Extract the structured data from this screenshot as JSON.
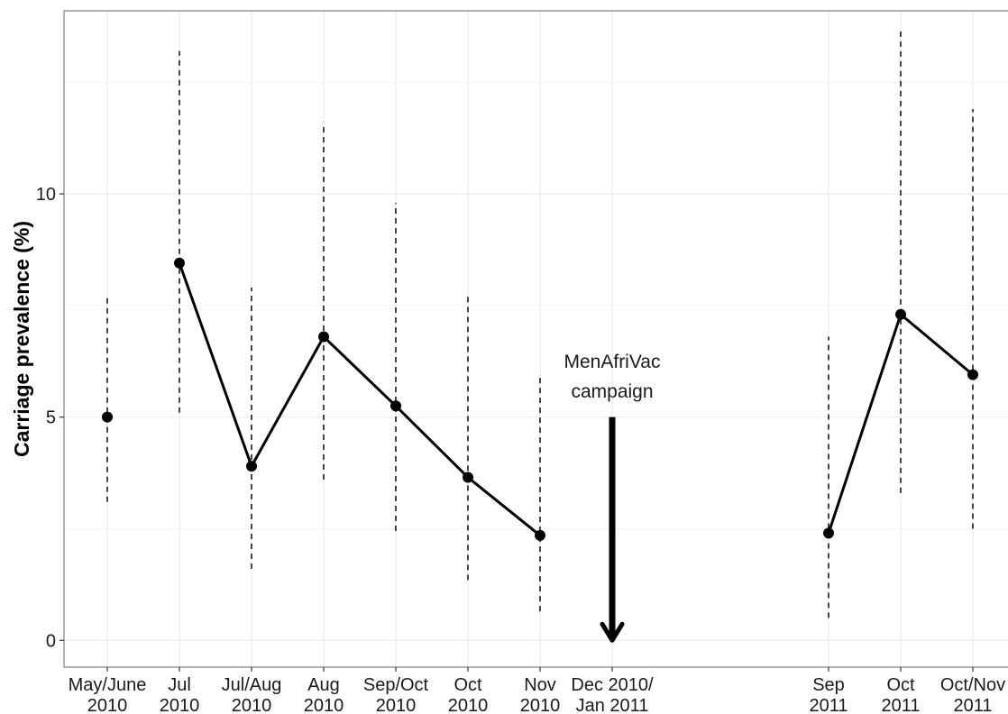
{
  "chart_data": {
    "type": "line",
    "ylabel": "Carriage prevalence (%)",
    "ylim": [
      -0.6,
      14.1
    ],
    "yticks": [
      0,
      5,
      10
    ],
    "grid": true,
    "x_tick_labels": [
      [
        "May/June",
        "2010"
      ],
      [
        "Jul",
        "2010"
      ],
      [
        "Jul/Aug",
        "2010"
      ],
      [
        "Aug",
        "2010"
      ],
      [
        "Sep/Oct",
        "2010"
      ],
      [
        "Oct",
        "2010"
      ],
      [
        "Nov",
        "2010"
      ],
      [
        "Dec 2010/",
        "Jan 2011"
      ],
      [
        "Sep",
        "2011"
      ],
      [
        "Oct",
        "2011"
      ],
      [
        "Oct/Nov",
        "2011"
      ]
    ],
    "points": [
      {
        "period": "May/June 2010",
        "y": 5.0,
        "lower": 3.1,
        "upper": 7.7
      },
      {
        "period": "Jul 2010",
        "y": 8.45,
        "lower": 5.1,
        "upper": 13.2
      },
      {
        "period": "Jul/Aug 2010",
        "y": 3.9,
        "lower": 1.6,
        "upper": 7.9
      },
      {
        "period": "Aug 2010",
        "y": 6.8,
        "lower": 3.6,
        "upper": 11.6
      },
      {
        "period": "Sep/Oct 2010",
        "y": 5.25,
        "lower": 2.45,
        "upper": 9.8
      },
      {
        "period": "Oct 2010",
        "y": 3.65,
        "lower": 1.35,
        "upper": 7.75
      },
      {
        "period": "Nov 2010",
        "y": 2.35,
        "lower": 0.65,
        "upper": 5.9
      },
      {
        "period": "Sep 2011",
        "y": 2.4,
        "lower": 0.5,
        "upper": 6.8
      },
      {
        "period": "Oct 2011",
        "y": 7.3,
        "lower": 3.3,
        "upper": 13.7
      },
      {
        "period": "Oct/Nov 2011",
        "y": 5.95,
        "lower": 2.5,
        "upper": 11.9
      }
    ],
    "line_segments": [
      [
        "Jul 2010",
        "Jul/Aug 2010",
        "Aug 2010",
        "Sep/Oct 2010",
        "Oct 2010",
        "Nov 2010"
      ],
      [
        "Sep 2011",
        "Oct 2011",
        "Oct/Nov 2011"
      ]
    ],
    "annotation": {
      "lines": [
        "MenAfriVac",
        "campaign"
      ],
      "period": "Dec 2010/ Jan 2011",
      "arrow_from_y": 5.0,
      "arrow_to_y": 0.0
    },
    "colors": {
      "line": "#000000",
      "errorbar": "#1a1a1a",
      "grid": "#ebebeb",
      "panel_border": "#7f7f7f"
    }
  }
}
